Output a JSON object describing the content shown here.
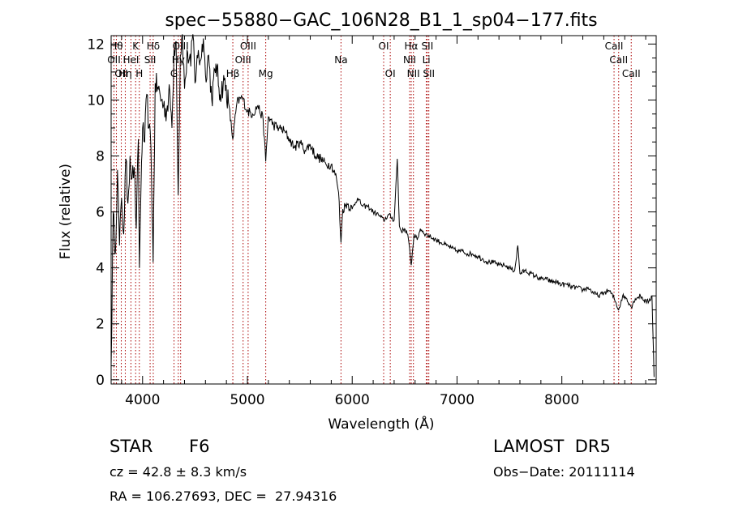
{
  "chart_data": {
    "type": "line",
    "title": "spec−55880−GAC_106N28_B1_1_sp04−177.fits",
    "xlabel": "Wavelength (Å)",
    "ylabel": "Flux (relative)",
    "xlim": [
      3700,
      8900
    ],
    "ylim": [
      -0.15,
      12.3
    ],
    "x_ticks": [
      4000,
      5000,
      6000,
      7000,
      8000
    ],
    "y_ticks": [
      0,
      2,
      4,
      6,
      8,
      10,
      12
    ],
    "grid": false,
    "line_color": "#000000",
    "line_marker_color": "#aa0000",
    "series": [
      {
        "x": [
          3700,
          3720,
          3740,
          3760,
          3780,
          3800,
          3820,
          3840,
          3860,
          3880,
          3900,
          3920,
          3940,
          3960,
          3970,
          3990,
          4000,
          4020,
          4040,
          4060,
          4080,
          4101,
          4120,
          4150,
          4180,
          4200,
          4230,
          4260,
          4280,
          4300,
          4320,
          4340,
          4360,
          4380,
          4400,
          4430,
          4460,
          4480,
          4500,
          4520,
          4550,
          4580,
          4600,
          4630,
          4660,
          4700,
          4740,
          4780,
          4820,
          4861,
          4900,
          4950,
          5000,
          5050,
          5100,
          5150,
          5175,
          5200,
          5250,
          5300,
          5350,
          5400,
          5450,
          5500,
          5550,
          5600,
          5650,
          5700,
          5750,
          5800,
          5850,
          5870,
          5893,
          5910,
          5950,
          6000,
          6050,
          6100,
          6150,
          6200,
          6250,
          6300,
          6350,
          6400,
          6430,
          6450,
          6470,
          6500,
          6530,
          6563,
          6590,
          6620,
          6650,
          6700,
          6750,
          6800,
          6850,
          6900,
          6950,
          7000,
          7050,
          7100,
          7150,
          7200,
          7250,
          7300,
          7350,
          7400,
          7450,
          7500,
          7550,
          7580,
          7600,
          7650,
          7700,
          7750,
          7800,
          7850,
          7900,
          7950,
          8000,
          8050,
          8100,
          8150,
          8200,
          8250,
          8300,
          8350,
          8400,
          8450,
          8500,
          8542,
          8580,
          8620,
          8662,
          8700,
          8750,
          8800,
          8830,
          8860,
          8880
        ],
        "y": [
          0.5,
          6.0,
          4.5,
          7.5,
          4.8,
          6.5,
          5.2,
          7.9,
          6.3,
          8.0,
          7.2,
          7.6,
          5.4,
          8.6,
          4.0,
          7.8,
          9.0,
          8.5,
          10.2,
          9.0,
          8.3,
          4.2,
          10.6,
          10.4,
          10.0,
          9.8,
          9.6,
          10.3,
          9.0,
          11.8,
          12.1,
          6.6,
          11.6,
          12.4,
          10.4,
          11.7,
          11.2,
          12.6,
          10.6,
          11.6,
          11.4,
          12.2,
          10.9,
          11.6,
          10.0,
          11.3,
          10.2,
          10.7,
          9.9,
          8.6,
          9.9,
          10.1,
          9.6,
          9.5,
          9.8,
          9.3,
          7.8,
          9.4,
          9.1,
          9.0,
          8.9,
          8.6,
          8.3,
          8.5,
          8.2,
          8.4,
          8.0,
          7.9,
          7.7,
          7.7,
          7.2,
          6.7,
          4.9,
          6.1,
          6.3,
          6.1,
          6.5,
          6.2,
          6.2,
          6.0,
          5.9,
          5.7,
          5.9,
          5.7,
          7.9,
          5.5,
          5.3,
          5.4,
          5.2,
          4.1,
          5.2,
          5.0,
          5.4,
          5.2,
          5.1,
          5.0,
          4.9,
          4.8,
          4.7,
          4.6,
          4.6,
          4.5,
          4.5,
          4.4,
          4.3,
          4.2,
          4.2,
          4.1,
          4.1,
          4.0,
          3.9,
          4.8,
          3.8,
          3.9,
          3.8,
          3.7,
          3.6,
          3.6,
          3.5,
          3.5,
          3.4,
          3.4,
          3.3,
          3.3,
          3.2,
          3.3,
          3.1,
          3.0,
          3.1,
          3.2,
          2.9,
          2.5,
          3.0,
          2.9,
          2.6,
          2.9,
          3.0,
          2.8,
          2.8,
          3.0,
          0.1
        ]
      }
    ],
    "lines": [
      {
        "x": 3750,
        "label": "Hθ",
        "row": 1
      },
      {
        "x": 3727,
        "label": "OII",
        "row": 2
      },
      {
        "x": 3797,
        "label": "OII",
        "row": 3
      },
      {
        "x": 3835,
        "label": "Hη",
        "row": 3
      },
      {
        "x": 3889,
        "label": "HeI",
        "row": 2
      },
      {
        "x": 3934,
        "label": "K",
        "row": 1
      },
      {
        "x": 3969,
        "label": "H",
        "row": 3
      },
      {
        "x": 4072,
        "label": "SII",
        "row": 2
      },
      {
        "x": 4102,
        "label": "Hδ",
        "row": 1
      },
      {
        "x": 4300,
        "label": "G",
        "row": 3
      },
      {
        "x": 4341,
        "label": "Hγ",
        "row": 2
      },
      {
        "x": 4363,
        "label": "OIII",
        "row": 1
      },
      {
        "x": 4861,
        "label": "Hβ",
        "row": 3
      },
      {
        "x": 4959,
        "label": "OIII",
        "row": 2
      },
      {
        "x": 5007,
        "label": "OIII",
        "row": 1
      },
      {
        "x": 5175,
        "label": "Mg",
        "row": 3
      },
      {
        "x": 5893,
        "label": "Na",
        "row": 2
      },
      {
        "x": 6300,
        "label": "OI",
        "row": 1
      },
      {
        "x": 6363,
        "label": "OI",
        "row": 3
      },
      {
        "x": 6548,
        "label": "NII",
        "row": 2
      },
      {
        "x": 6563,
        "label": "Hα",
        "row": 1
      },
      {
        "x": 6584,
        "label": "NII",
        "row": 3
      },
      {
        "x": 6707,
        "label": "Li",
        "row": 2
      },
      {
        "x": 6717,
        "label": "SII",
        "row": 1
      },
      {
        "x": 6731,
        "label": "SII",
        "row": 3
      },
      {
        "x": 8498,
        "label": "CaII",
        "row": 1
      },
      {
        "x": 8542,
        "label": "CaII",
        "row": 2
      },
      {
        "x": 8662,
        "label": "CaII",
        "row": 3
      }
    ]
  },
  "info": {
    "object_class": "STAR",
    "subclass": "F6",
    "survey": "LAMOST  DR5",
    "redshift": "cz = 42.8 ± 8.3 km/s",
    "obs_date": "Obs−Date: 20111114",
    "coords": "RA = 106.27693, DEC =  27.94316"
  }
}
